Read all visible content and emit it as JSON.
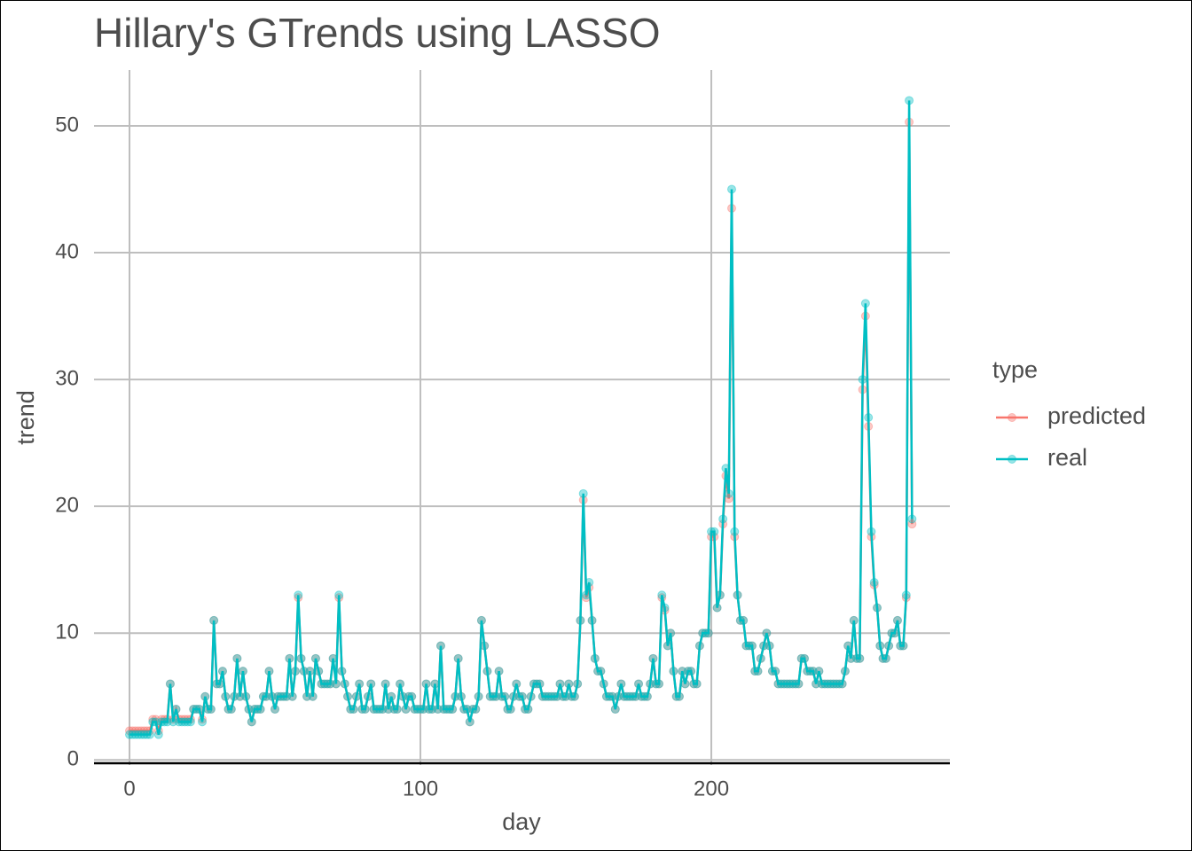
{
  "chart_data": {
    "type": "line",
    "title": "Hillary's GTrends using LASSO",
    "x_label": "day",
    "y_label": "trend",
    "legend_title": "type",
    "legend_position": "right",
    "grid": true,
    "points": true,
    "xlim": [
      -12.2,
      282
    ],
    "ylim": [
      -0.4,
      54.4
    ],
    "xticks": [
      0,
      100,
      200
    ],
    "yticks": [
      0,
      10,
      20,
      30,
      40,
      50
    ],
    "x": [
      0,
      1,
      2,
      3,
      4,
      5,
      6,
      7,
      8,
      9,
      10,
      11,
      12,
      13,
      14,
      15,
      16,
      17,
      18,
      19,
      20,
      21,
      22,
      23,
      24,
      25,
      26,
      27,
      28,
      29,
      30,
      31,
      32,
      33,
      34,
      35,
      36,
      37,
      38,
      39,
      40,
      41,
      42,
      43,
      44,
      45,
      46,
      47,
      48,
      49,
      50,
      51,
      52,
      53,
      54,
      55,
      56,
      57,
      58,
      59,
      60,
      61,
      62,
      63,
      64,
      65,
      66,
      67,
      68,
      69,
      70,
      71,
      72,
      73,
      74,
      75,
      76,
      77,
      78,
      79,
      80,
      81,
      82,
      83,
      84,
      85,
      86,
      87,
      88,
      89,
      90,
      91,
      92,
      93,
      94,
      95,
      96,
      97,
      98,
      99,
      100,
      101,
      102,
      103,
      104,
      105,
      106,
      107,
      108,
      109,
      110,
      111,
      112,
      113,
      114,
      115,
      116,
      117,
      118,
      119,
      120,
      121,
      122,
      123,
      124,
      125,
      126,
      127,
      128,
      129,
      130,
      131,
      132,
      133,
      134,
      135,
      136,
      137,
      138,
      139,
      140,
      141,
      142,
      143,
      144,
      145,
      146,
      147,
      148,
      149,
      150,
      151,
      152,
      153,
      154,
      155,
      156,
      157,
      158,
      159,
      160,
      161,
      162,
      163,
      164,
      165,
      166,
      167,
      168,
      169,
      170,
      171,
      172,
      173,
      174,
      175,
      176,
      177,
      178,
      179,
      180,
      181,
      182,
      183,
      184,
      185,
      186,
      187,
      188,
      189,
      190,
      191,
      192,
      193,
      194,
      195,
      196,
      197,
      198,
      199,
      200,
      201,
      202,
      203,
      204,
      205,
      206,
      207,
      208,
      209,
      210,
      211,
      212,
      213,
      214,
      215,
      216,
      217,
      218,
      219,
      220,
      221,
      222,
      223,
      224,
      225,
      226,
      227,
      228,
      229,
      230,
      231,
      232,
      233,
      234,
      235,
      236,
      237,
      238,
      239,
      240,
      241,
      242,
      243,
      244,
      245,
      246,
      247,
      248,
      249,
      250,
      251,
      252,
      253,
      254,
      255,
      256,
      257,
      258,
      259,
      260,
      261,
      262,
      263,
      264,
      265,
      266,
      267,
      268,
      269
    ],
    "series": [
      {
        "name": "predicted",
        "color": "#F8766D",
        "values": [
          2.3,
          2.3,
          2.3,
          2.3,
          2.3,
          2.3,
          2.3,
          2.3,
          3.2,
          3.2,
          2.3,
          3.2,
          3.2,
          3.2,
          6,
          3.2,
          4,
          3.2,
          3.2,
          3.2,
          3.2,
          3.2,
          4,
          4,
          4,
          3.2,
          5,
          4,
          4,
          11,
          6,
          6,
          7,
          5,
          4,
          4,
          5,
          8,
          5,
          7,
          5,
          4,
          3,
          4,
          4,
          4,
          5,
          5,
          7,
          5,
          4,
          5,
          5,
          5,
          5,
          8,
          5,
          7,
          12.8,
          8,
          7,
          5,
          7,
          5,
          8,
          7,
          6,
          6,
          6,
          6,
          8,
          6,
          12.8,
          7,
          6,
          5,
          4,
          4,
          5,
          6,
          4,
          4,
          5,
          6,
          4,
          4,
          4,
          4,
          6,
          4,
          5,
          4,
          4,
          6,
          5,
          4,
          5,
          5,
          4,
          4,
          4,
          4,
          6,
          4,
          4,
          6,
          4,
          9,
          4,
          4,
          4,
          4,
          5,
          8,
          5,
          4,
          4,
          3,
          4,
          4,
          5,
          11,
          9,
          7,
          5,
          5,
          5,
          7,
          5,
          5,
          4,
          4,
          5,
          6,
          5,
          5,
          4,
          4,
          5,
          6,
          6,
          6,
          5,
          5,
          5,
          5,
          5,
          5,
          6,
          5,
          5,
          6,
          5,
          5,
          6,
          11,
          20.5,
          12.8,
          13.6,
          11,
          8,
          7,
          7,
          6,
          5,
          5,
          5,
          4,
          5,
          6,
          5,
          5,
          5,
          5,
          5,
          6,
          5,
          5,
          5,
          6,
          8,
          6,
          6,
          12.8,
          11.8,
          9,
          10,
          7,
          5,
          5,
          7,
          6,
          7,
          7,
          6,
          6,
          9,
          10,
          10,
          10,
          17.6,
          17.6,
          12,
          13,
          18.6,
          22.4,
          20.6,
          43.5,
          17.6,
          13,
          11,
          11,
          9,
          9,
          9,
          7,
          7,
          8,
          9,
          10,
          9,
          7,
          7,
          6,
          6,
          6,
          6,
          6,
          6,
          6,
          6,
          8,
          8,
          7,
          7,
          7,
          6,
          7,
          6,
          6,
          6,
          6,
          6,
          6,
          6,
          6,
          7,
          9,
          8,
          11,
          8,
          8,
          29.2,
          35,
          26.3,
          17.6,
          13.8,
          12,
          9,
          8,
          8,
          9,
          10,
          10,
          11,
          9,
          9,
          12.8,
          50.3,
          18.6
        ]
      },
      {
        "name": "real",
        "color": "#00BFC4",
        "values": [
          2,
          2,
          2,
          2,
          2,
          2,
          2,
          2,
          3,
          3,
          2,
          3,
          3,
          3,
          6,
          3,
          4,
          3,
          3,
          3,
          3,
          3,
          4,
          4,
          4,
          3,
          5,
          4,
          4,
          11,
          6,
          6,
          7,
          5,
          4,
          4,
          5,
          8,
          5,
          7,
          5,
          4,
          3,
          4,
          4,
          4,
          5,
          5,
          7,
          5,
          4,
          5,
          5,
          5,
          5,
          8,
          5,
          7,
          13,
          8,
          7,
          5,
          7,
          5,
          8,
          7,
          6,
          6,
          6,
          6,
          8,
          6,
          13,
          7,
          6,
          5,
          4,
          4,
          5,
          6,
          4,
          4,
          5,
          6,
          4,
          4,
          4,
          4,
          6,
          4,
          5,
          4,
          4,
          6,
          5,
          4,
          5,
          5,
          4,
          4,
          4,
          4,
          6,
          4,
          4,
          6,
          4,
          9,
          4,
          4,
          4,
          4,
          5,
          8,
          5,
          4,
          4,
          3,
          4,
          4,
          5,
          11,
          9,
          7,
          5,
          5,
          5,
          7,
          5,
          5,
          4,
          4,
          5,
          6,
          5,
          5,
          4,
          4,
          5,
          6,
          6,
          6,
          5,
          5,
          5,
          5,
          5,
          5,
          6,
          5,
          5,
          6,
          5,
          5,
          6,
          11,
          21,
          13,
          14,
          11,
          8,
          7,
          7,
          6,
          5,
          5,
          5,
          4,
          5,
          6,
          5,
          5,
          5,
          5,
          5,
          6,
          5,
          5,
          5,
          6,
          8,
          6,
          6,
          13,
          12,
          9,
          10,
          7,
          5,
          5,
          7,
          6,
          7,
          7,
          6,
          6,
          9,
          10,
          10,
          10,
          18,
          18,
          12,
          13,
          19,
          23,
          21,
          45,
          18,
          13,
          11,
          11,
          9,
          9,
          9,
          7,
          7,
          8,
          9,
          10,
          9,
          7,
          7,
          6,
          6,
          6,
          6,
          6,
          6,
          6,
          6,
          8,
          8,
          7,
          7,
          7,
          6,
          7,
          6,
          6,
          6,
          6,
          6,
          6,
          6,
          6,
          7,
          9,
          8,
          11,
          8,
          8,
          30,
          36,
          27,
          18,
          14,
          12,
          9,
          8,
          8,
          9,
          10,
          10,
          11,
          9,
          9,
          13,
          52,
          19
        ]
      }
    ]
  }
}
